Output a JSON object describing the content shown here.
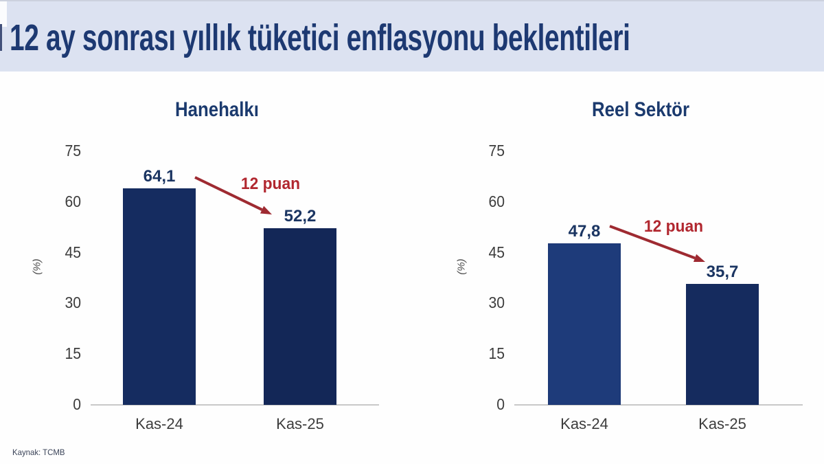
{
  "header": {
    "title": "12 ay sonrası yıllık tüketici enflasyonu beklentileri"
  },
  "source": {
    "label": "Kaynak: TCMB"
  },
  "colors": {
    "header_bg": "#dce2f1",
    "title_navy": "#1d3972",
    "value_navy": "#1b3562",
    "axis_gray": "#3d3d3d",
    "accent_red": "#b1272f",
    "arrow_red": "#9e2a31",
    "baseline_gray": "#c8c8c8"
  },
  "chart_data": [
    {
      "type": "bar",
      "title": "Hanehalkı",
      "categories": [
        "Kas-24",
        "Kas-25"
      ],
      "values": [
        64.1,
        52.2
      ],
      "value_labels": [
        "64,1",
        "52,2"
      ],
      "bar_colors": [
        "#152c60",
        "#132757"
      ],
      "annotation": {
        "text": "12 puan",
        "color": "#b1272f",
        "arrow_color": "#9e2a31"
      },
      "ylabel": "(%)",
      "yticks": [
        0,
        15,
        30,
        45,
        60,
        75
      ],
      "ylim": [
        0,
        75
      ],
      "grid": false,
      "legend": "none"
    },
    {
      "type": "bar",
      "title": "Reel Sektör",
      "categories": [
        "Kas-24",
        "Kas-25"
      ],
      "values": [
        47.8,
        35.7
      ],
      "value_labels": [
        "47,8",
        "35,7"
      ],
      "bar_colors": [
        "#1e3b7a",
        "#152b5e"
      ],
      "annotation": {
        "text": "12 puan",
        "color": "#b1272f",
        "arrow_color": "#9e2a31"
      },
      "ylabel": "(%)",
      "yticks": [
        0,
        15,
        30,
        45,
        60,
        75
      ],
      "ylim": [
        0,
        75
      ],
      "grid": false,
      "legend": "none"
    }
  ]
}
